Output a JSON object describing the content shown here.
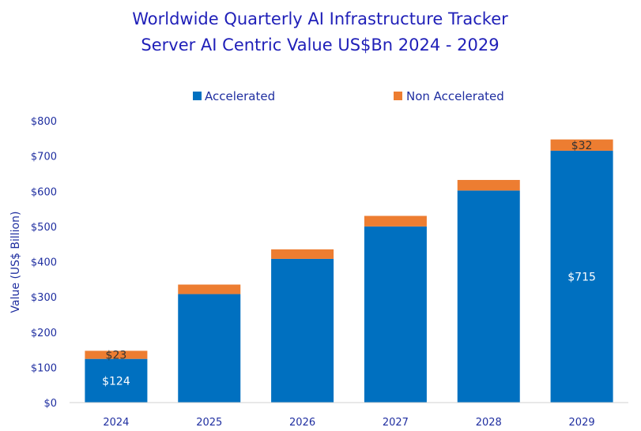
{
  "chart_data": {
    "type": "bar",
    "stacked": true,
    "title": "Worldwide Quarterly AI Infrastructure Tracker",
    "subtitle": "Server AI Centric Value US$Bn 2024 - 2029",
    "ylabel": "Value  (US$ Billion)",
    "xlabel": "",
    "ylim": [
      0,
      800
    ],
    "yticks": [
      0,
      100,
      200,
      300,
      400,
      500,
      600,
      700,
      800
    ],
    "ytick_labels": [
      "$0",
      "$100",
      "$200",
      "$300",
      "$400",
      "$500",
      "$600",
      "$700",
      "$800"
    ],
    "categories": [
      "2024",
      "2025",
      "2026",
      "2027",
      "2028",
      "2029"
    ],
    "legend_position": "top-center",
    "grid": false,
    "series": [
      {
        "name": "Accelerated",
        "color": "#0070c0",
        "values": [
          124,
          308,
          408,
          500,
          602,
          715
        ],
        "data_labels": [
          "$124",
          "",
          "",
          "",
          "",
          "$715"
        ]
      },
      {
        "name": "Non Accelerated",
        "color": "#ed7d31",
        "values": [
          23,
          27,
          27,
          30,
          30,
          32
        ],
        "data_labels": [
          "$23",
          "",
          "",
          "",
          "",
          "$32"
        ]
      }
    ]
  }
}
